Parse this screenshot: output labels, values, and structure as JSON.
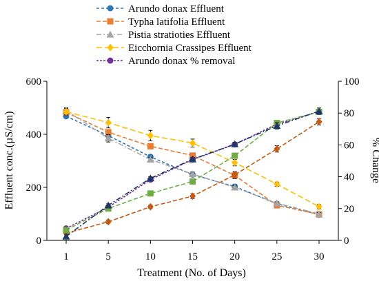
{
  "chart_data": {
    "type": "line",
    "xlabel": "Treatment (No. of Days)",
    "ylabel_left": "Effluent conc.(µS/cm)",
    "ylabel_right": "% Change",
    "x_categories": [
      "1",
      "5",
      "10",
      "15",
      "20",
      "25",
      "30"
    ],
    "y_left": {
      "min": 0,
      "max": 600,
      "ticks": [
        0,
        200,
        400,
        600
      ]
    },
    "y_right": {
      "min": 0,
      "max": 100,
      "ticks": [
        0,
        20,
        40,
        60,
        80,
        100
      ]
    },
    "legend_position": "top",
    "series": [
      {
        "name": "Arundo donax Effluent",
        "axis": "left",
        "color": "#2E75B6",
        "marker": "circle",
        "dash": "4,3",
        "values": [
          468,
          395,
          315,
          248,
          203,
          138,
          97
        ],
        "err": [
          6,
          10,
          8,
          8,
          8,
          5,
          5
        ]
      },
      {
        "name": "Typha latifolia Effluent",
        "axis": "left",
        "color": "#ED7D31",
        "marker": "square",
        "dash": "6,3",
        "values": [
          483,
          408,
          355,
          320,
          245,
          132,
          98
        ],
        "err": [
          8,
          10,
          10,
          10,
          12,
          5,
          5
        ]
      },
      {
        "name": "Pistia stratioties Effluent",
        "axis": "left",
        "color": "#A5A5A5",
        "marker": "triangle",
        "dash": "7,3,2,3",
        "values": [
          490,
          385,
          305,
          250,
          200,
          140,
          100
        ],
        "err": [
          10,
          14,
          8,
          8,
          8,
          5,
          5
        ]
      },
      {
        "name": "Eicchornia Crassipes Effluent",
        "axis": "left",
        "color": "#FFC000",
        "marker": "diamond",
        "dash": "8,4",
        "values": [
          485,
          444,
          395,
          367,
          293,
          212,
          127
        ],
        "err": [
          12,
          20,
          20,
          15,
          12,
          8,
          8
        ]
      },
      {
        "name": "Arundo donax % removal",
        "axis": "right",
        "color": "#7030A0",
        "marker": "circle",
        "dash": "3,2",
        "values": [
          7.5,
          20.8,
          38.2,
          50.8,
          60.3,
          73.1,
          80.9
        ],
        "err": [
          1,
          1,
          1,
          1,
          1,
          1,
          1
        ]
      },
      {
        "name": "",
        "axis": "right",
        "color": "#C55A11",
        "marker": "diamond",
        "dash": "6,3",
        "values": [
          4.5,
          11.7,
          21.1,
          27.8,
          41.2,
          57.5,
          74.5
        ],
        "err": [
          1,
          1,
          1,
          1.5,
          2,
          2,
          2
        ]
      },
      {
        "name": "",
        "axis": "right",
        "color": "#70AD47",
        "marker": "square",
        "dash": "6,3",
        "values": [
          6.5,
          20.0,
          29.5,
          37.0,
          53.2,
          73.8,
          80.8
        ],
        "err": [
          1,
          1,
          1,
          1,
          1.5,
          1.5,
          1.5
        ]
      },
      {
        "name": "",
        "axis": "right",
        "color": "#1F3864",
        "marker": "triangle",
        "dash": "7,3,2,3",
        "values": [
          2.5,
          22.0,
          39.0,
          51.0,
          60.5,
          72.0,
          81.2
        ],
        "err": [
          1,
          1,
          1,
          1,
          1,
          2,
          2
        ]
      }
    ]
  }
}
